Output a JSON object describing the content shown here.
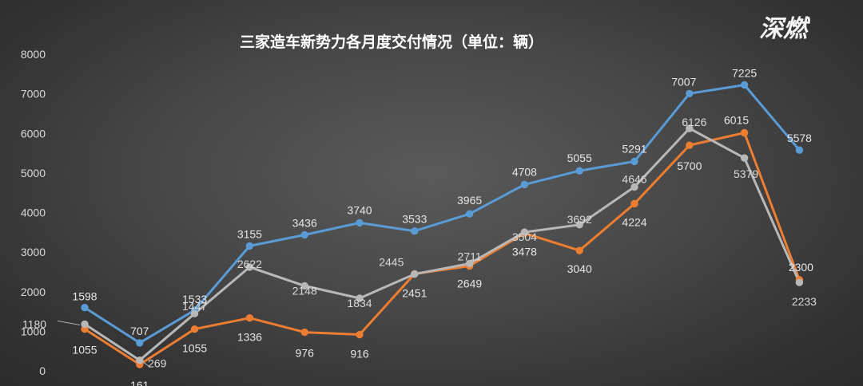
{
  "logo": {
    "text": "深燃"
  },
  "chart_data": {
    "type": "line",
    "title": "三家造车新势力各月度交付情况（单位：辆）",
    "xlabel": "",
    "ylabel": "",
    "ylim": [
      0,
      8000
    ],
    "yticks": [
      0,
      1000,
      2000,
      3000,
      4000,
      5000,
      6000,
      7000,
      8000
    ],
    "grid": false,
    "x": [
      1,
      2,
      3,
      4,
      5,
      6,
      7,
      8,
      9,
      10,
      11,
      12,
      13,
      14
    ],
    "series": [
      {
        "color": "#5b9bd5",
        "values": [
          1598,
          707,
          1533,
          3155,
          3436,
          3740,
          3533,
          3965,
          4708,
          5055,
          5291,
          7007,
          7225,
          5578
        ]
      },
      {
        "color": "#ed7d31",
        "values": [
          1055,
          161,
          1055,
          1336,
          976,
          916,
          2451,
          2649,
          3478,
          3040,
          4224,
          5700,
          6015,
          2300
        ]
      },
      {
        "color": "#b8b8b8",
        "values": [
          1180,
          269,
          1447,
          2622,
          2148,
          1834,
          2445,
          2711,
          3504,
          3692,
          4646,
          6126,
          5379,
          2233
        ]
      }
    ]
  }
}
